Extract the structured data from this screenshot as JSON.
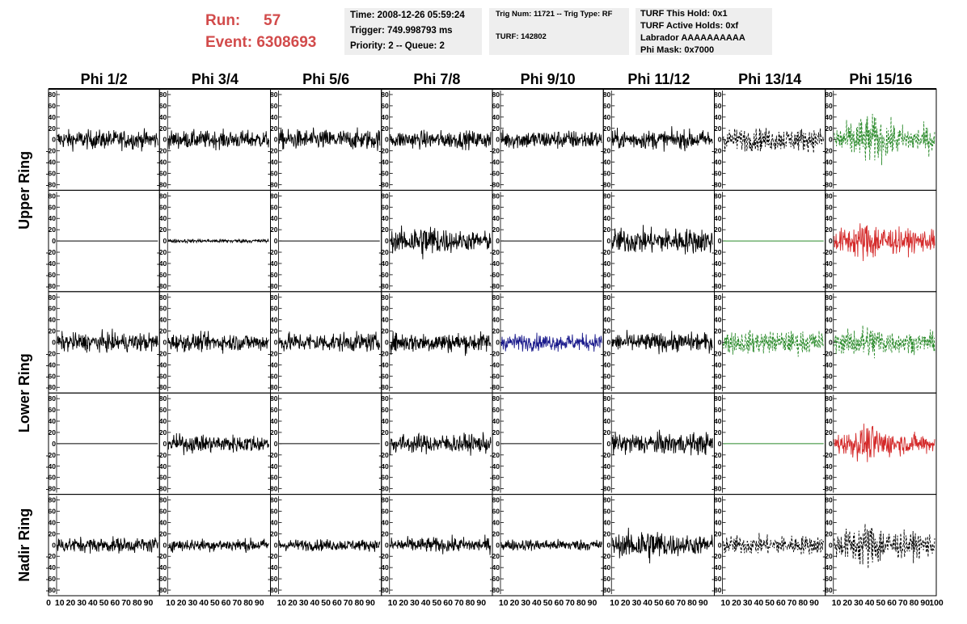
{
  "header": {
    "run_label": "Run:",
    "run_value": "57",
    "event_label": "Event:",
    "event_value": "6308693",
    "time": "Time: 2008-12-26 05:59:24",
    "trigger": "Trigger: 749.998793 ms",
    "priority": "Priority: 2 -- Queue: 2",
    "trig_num": "Trig Num: 11721 -- Trig Type: RF",
    "turf": "TURF: 142802",
    "turf_this_hold": "TURF This Hold: 0x1",
    "turf_active_holds": "TURF Active Holds: 0xf",
    "labrador": "Labrador AAAAAAAAAA",
    "phi_mask": "Phi Mask: 0x7000"
  },
  "chart_data": {
    "type": "line",
    "columns": [
      "Phi 1/2",
      "Phi 3/4",
      "Phi 5/6",
      "Phi 7/8",
      "Phi 9/10",
      "Phi 11/12",
      "Phi 13/14",
      "Phi 15/16"
    ],
    "rows": [
      "Upper Ring",
      "Lower Ring",
      "Nadir Ring"
    ],
    "sub_rows_per_ring": {
      "Upper Ring": 2,
      "Lower Ring": 2,
      "Nadir Ring": 1
    },
    "ylim": [
      -90,
      90
    ],
    "yticks": [
      80,
      60,
      40,
      20,
      0,
      -20,
      -40,
      -60,
      -80
    ],
    "xlim": [
      0,
      100
    ],
    "xticks": [
      0,
      10,
      20,
      30,
      40,
      50,
      60,
      70,
      80,
      90
    ],
    "xtick_labels": [
      "0",
      "10",
      "20",
      "30",
      "40",
      "50",
      "60",
      "70",
      "80",
      "90",
      "10",
      "20",
      "30",
      "40",
      "50",
      "60",
      "70",
      "80",
      "90",
      "10",
      "20",
      "30",
      "40",
      "50",
      "60",
      "70",
      "80",
      "90",
      "10",
      "20",
      "30",
      "40",
      "50",
      "60",
      "70",
      "80",
      "90",
      "10",
      "20",
      "30",
      "40",
      "50",
      "60",
      "70",
      "80",
      "90",
      "10",
      "20",
      "30",
      "40",
      "50",
      "60",
      "70",
      "80",
      "90",
      "10",
      "20",
      "30",
      "40",
      "50",
      "60",
      "70",
      "80",
      "90",
      "10",
      "20",
      "30",
      "40",
      "50",
      "60",
      "70",
      "80",
      "90",
      "100"
    ],
    "colors": {
      "black": "#000000",
      "blue": "#1a1a8c",
      "green": "#2a8a2a",
      "red": "#d42a2a"
    },
    "panels": [
      [
        "black",
        "black",
        "black",
        "black",
        "black",
        "black",
        "black",
        "green"
      ],
      [
        "flat",
        "black",
        "flat",
        "black",
        "flat",
        "black",
        "flat-green",
        "red"
      ],
      [
        "black",
        "black",
        "black",
        "black",
        "blue",
        "black",
        "green",
        "green"
      ],
      [
        "flat",
        "black",
        "flat",
        "black",
        "flat",
        "black",
        "flat-green",
        "red"
      ],
      [
        "black",
        "black",
        "black",
        "black",
        "black",
        "black",
        "black",
        "black"
      ]
    ],
    "styles": [
      [
        "solid",
        "solid",
        "solid",
        "solid",
        "solid",
        "solid",
        "dashed",
        "dashed"
      ],
      [
        "solid",
        "solid",
        "solid",
        "solid",
        "solid",
        "solid",
        "solid",
        "solid"
      ],
      [
        "solid",
        "solid",
        "solid",
        "solid",
        "solid",
        "solid",
        "dashed",
        "dashed"
      ],
      [
        "solid",
        "solid",
        "solid",
        "solid",
        "solid",
        "solid",
        "solid",
        "solid"
      ],
      [
        "solid",
        "solid",
        "solid",
        "solid",
        "solid",
        "solid",
        "dashed",
        "dashed"
      ]
    ],
    "amplitudes": [
      [
        15,
        14,
        16,
        14,
        15,
        15,
        18,
        30
      ],
      [
        0,
        3,
        0,
        22,
        0,
        20,
        0,
        25
      ],
      [
        15,
        14,
        15,
        16,
        13,
        15,
        18,
        22
      ],
      [
        0,
        14,
        0,
        15,
        0,
        17,
        0,
        22
      ],
      [
        12,
        10,
        9,
        12,
        9,
        22,
        15,
        28
      ]
    ]
  }
}
